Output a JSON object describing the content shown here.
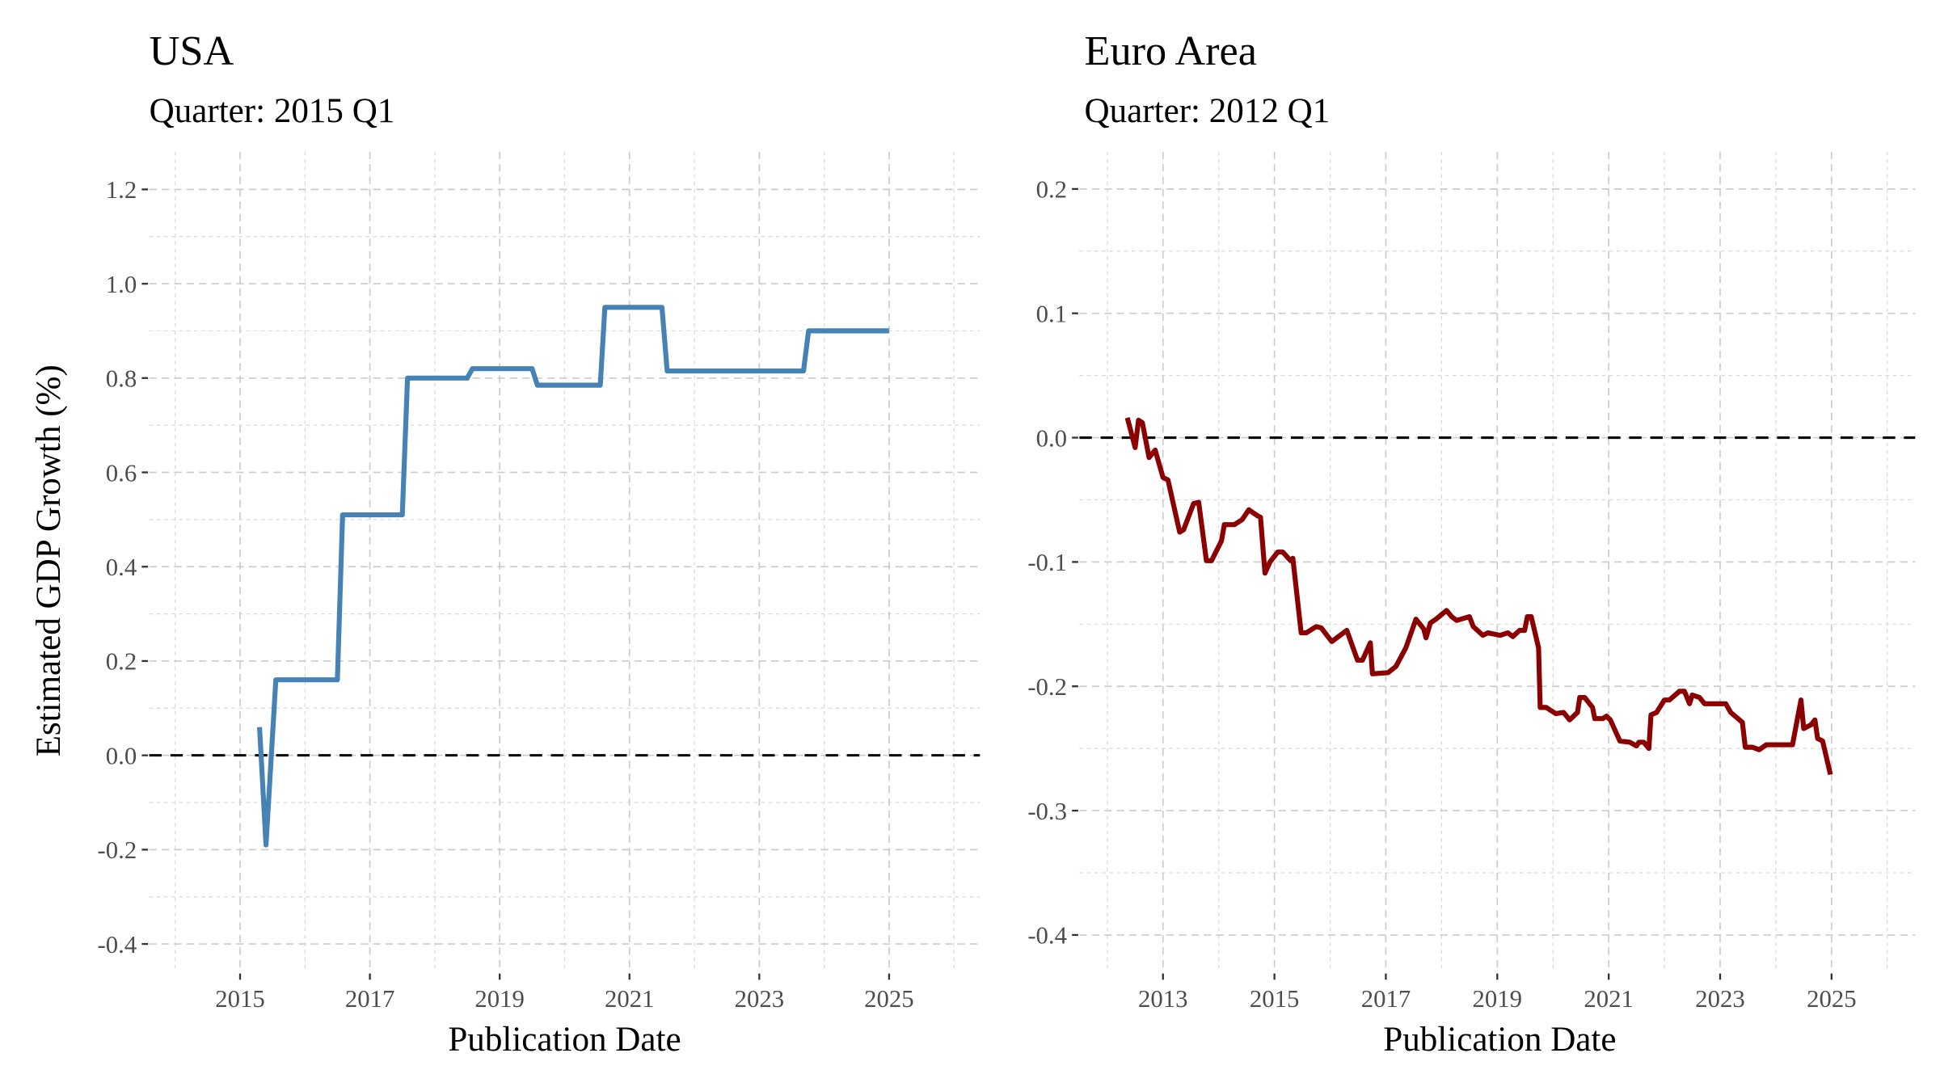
{
  "chart_data": [
    {
      "type": "line",
      "title": "USA",
      "subtitle": "Quarter: 2015 Q1",
      "xlabel": "Publication Date",
      "ylabel": "Estimated GDP Growth (%)",
      "xlim": [
        2013.6,
        2026.4
      ],
      "ylim": [
        -0.46,
        1.28
      ],
      "xticks": [
        2015,
        2017,
        2019,
        2021,
        2023,
        2025
      ],
      "yticks": [
        -0.4,
        -0.2,
        0.0,
        0.2,
        0.4,
        0.6,
        0.8,
        1.0,
        1.2
      ],
      "ytick_labels": [
        "-0.4",
        "-0.2",
        "0.0",
        "0.2",
        "0.4",
        "0.6",
        "0.8",
        "1.0",
        "1.2"
      ],
      "grid": true,
      "reference_line": 0,
      "color": "#4682B4",
      "x": [
        2015.3,
        2015.4,
        2015.55,
        2016.5,
        2016.58,
        2017.5,
        2017.58,
        2018.5,
        2018.58,
        2019.5,
        2019.58,
        2020.55,
        2020.62,
        2021.5,
        2021.58,
        2023.68,
        2023.76,
        2025.0
      ],
      "y": [
        0.06,
        -0.19,
        0.16,
        0.16,
        0.51,
        0.51,
        0.8,
        0.8,
        0.82,
        0.82,
        0.785,
        0.785,
        0.95,
        0.95,
        0.815,
        0.815,
        0.9,
        0.9
      ]
    },
    {
      "type": "line",
      "title": "Euro Area",
      "subtitle": "Quarter: 2012 Q1",
      "xlabel": "Publication Date",
      "ylabel": "",
      "xlim": [
        2011.5,
        2026.5
      ],
      "ylim": [
        -0.43,
        0.23
      ],
      "xticks": [
        2013,
        2015,
        2017,
        2019,
        2021,
        2023,
        2025
      ],
      "yticks": [
        -0.4,
        -0.3,
        -0.2,
        -0.1,
        0.0,
        0.1,
        0.2
      ],
      "ytick_labels": [
        "-0.4",
        "-0.3",
        "-0.2",
        "-0.1",
        "0.0",
        "0.1",
        "0.2"
      ],
      "grid": true,
      "reference_line": 0,
      "color": "#8B0000",
      "x": [
        2012.36,
        2012.5,
        2012.56,
        2012.63,
        2012.75,
        2012.86,
        2013.0,
        2013.09,
        2013.3,
        2013.37,
        2013.55,
        2013.64,
        2013.78,
        2013.87,
        2014.05,
        2014.1,
        2014.28,
        2014.42,
        2014.54,
        2014.7,
        2014.75,
        2014.83,
        2014.92,
        2015.06,
        2015.15,
        2015.29,
        2015.33,
        2015.48,
        2015.57,
        2015.75,
        2015.84,
        2016.03,
        2016.3,
        2016.49,
        2016.58,
        2016.72,
        2016.76,
        2017.04,
        2017.18,
        2017.36,
        2017.54,
        2017.68,
        2017.72,
        2017.8,
        2017.9,
        2018.09,
        2018.18,
        2018.27,
        2018.5,
        2018.57,
        2018.74,
        2018.83,
        2019.05,
        2019.19,
        2019.28,
        2019.4,
        2019.49,
        2019.54,
        2019.61,
        2019.74,
        2019.77,
        2019.88,
        2020.05,
        2020.19,
        2020.3,
        2020.44,
        2020.48,
        2020.57,
        2020.71,
        2020.75,
        2020.89,
        2020.96,
        2021.03,
        2021.2,
        2021.38,
        2021.5,
        2021.54,
        2021.63,
        2021.72,
        2021.76,
        2021.86,
        2022.0,
        2022.09,
        2022.27,
        2022.36,
        2022.45,
        2022.5,
        2022.63,
        2022.72,
        2022.86,
        2023.1,
        2023.19,
        2023.4,
        2023.45,
        2023.58,
        2023.7,
        2023.83,
        2024.15,
        2024.3,
        2024.45,
        2024.5,
        2024.63,
        2024.7,
        2024.75,
        2024.84,
        2024.98
      ],
      "y": [
        0.016,
        -0.008,
        0.014,
        0.012,
        -0.016,
        -0.01,
        -0.032,
        -0.034,
        -0.076,
        -0.074,
        -0.053,
        -0.052,
        -0.099,
        -0.099,
        -0.083,
        -0.07,
        -0.07,
        -0.066,
        -0.058,
        -0.063,
        -0.064,
        -0.109,
        -0.1,
        -0.092,
        -0.092,
        -0.099,
        -0.097,
        -0.157,
        -0.157,
        -0.152,
        -0.153,
        -0.164,
        -0.155,
        -0.179,
        -0.179,
        -0.165,
        -0.19,
        -0.189,
        -0.184,
        -0.169,
        -0.146,
        -0.154,
        -0.161,
        -0.149,
        -0.146,
        -0.139,
        -0.144,
        -0.147,
        -0.144,
        -0.152,
        -0.159,
        -0.157,
        -0.159,
        -0.157,
        -0.16,
        -0.155,
        -0.155,
        -0.144,
        -0.144,
        -0.169,
        -0.217,
        -0.217,
        -0.222,
        -0.221,
        -0.227,
        -0.221,
        -0.209,
        -0.209,
        -0.217,
        -0.226,
        -0.226,
        -0.224,
        -0.227,
        -0.244,
        -0.245,
        -0.248,
        -0.245,
        -0.245,
        -0.25,
        -0.223,
        -0.221,
        -0.211,
        -0.211,
        -0.204,
        -0.204,
        -0.214,
        -0.207,
        -0.209,
        -0.214,
        -0.214,
        -0.214,
        -0.221,
        -0.229,
        -0.249,
        -0.249,
        -0.251,
        -0.247,
        -0.247,
        -0.247,
        -0.211,
        -0.234,
        -0.231,
        -0.227,
        -0.242,
        -0.244,
        -0.271
      ]
    }
  ]
}
